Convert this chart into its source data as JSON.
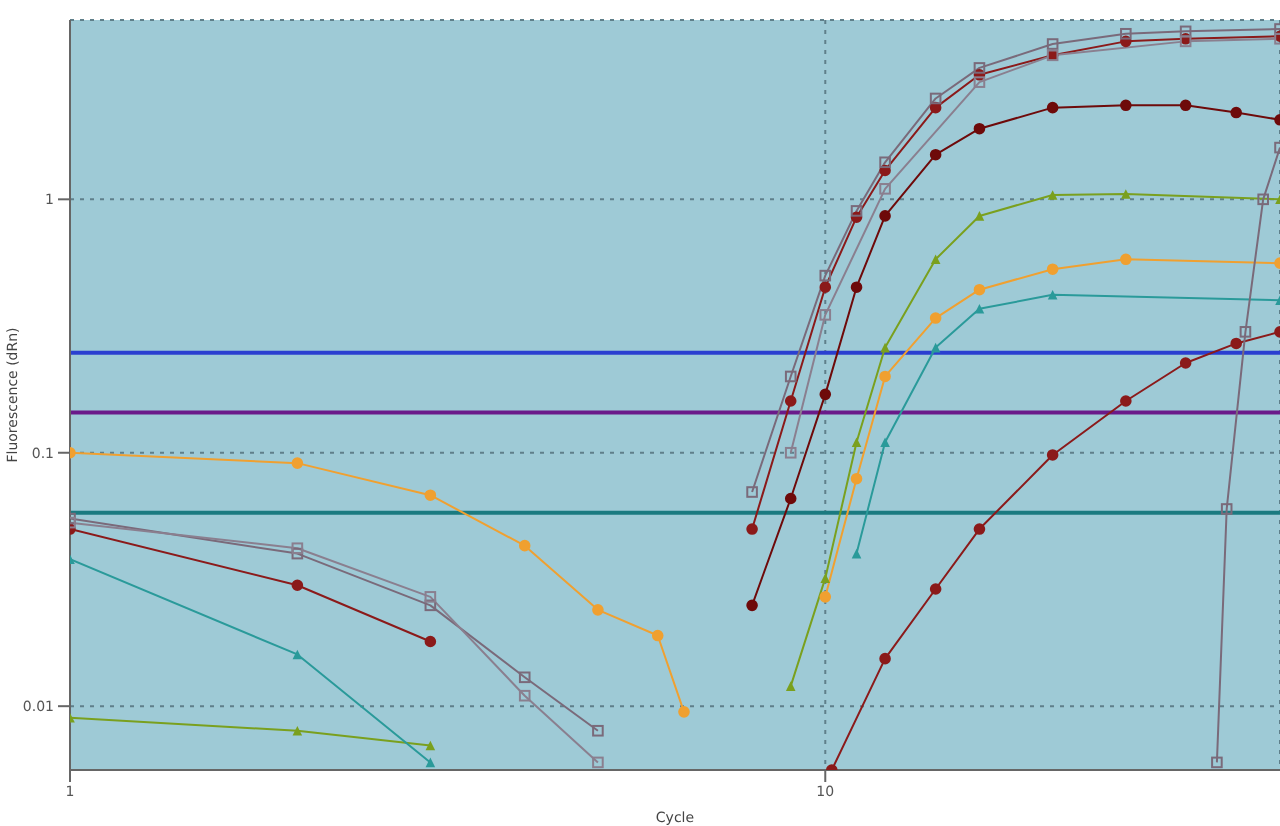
{
  "chart_data": {
    "type": "line",
    "xlabel": "Cycle",
    "ylabel": "Fluorescence (dRn)",
    "log": "xy",
    "xlim": [
      1,
      40
    ],
    "xticks": [
      1,
      10
    ],
    "ylim": [
      0.0056,
      5.1
    ],
    "yticks": [
      0.01,
      0.1,
      1
    ],
    "grid": true,
    "line_style": "solid",
    "ref_lines": [
      {
        "axis": "y",
        "value": 0.248,
        "color": "#2a3fd0"
      },
      {
        "axis": "y",
        "value": 0.144,
        "color": "#6a1a8a"
      },
      {
        "axis": "y",
        "value": 0.058,
        "color": "#1a7a80"
      }
    ],
    "series": [
      {
        "color": "#8b1a1a",
        "marker": "circle",
        "x": [
          1,
          2,
          3,
          4,
          8,
          9,
          10,
          11,
          12,
          14,
          16,
          20,
          25,
          30,
          40
        ],
        "values": [
          0.05,
          0.03,
          0.018,
          null,
          0.05,
          0.16,
          0.45,
          0.85,
          1.3,
          2.3,
          3.1,
          3.7,
          4.2,
          4.3,
          4.4
        ]
      },
      {
        "color": "#7a6a7a",
        "marker": "square",
        "x": [
          1,
          2,
          3,
          4,
          5,
          6,
          8,
          9,
          10,
          11,
          12,
          14,
          16,
          20,
          25,
          30,
          40
        ],
        "values": [
          0.055,
          0.04,
          0.025,
          0.013,
          0.008,
          null,
          0.07,
          0.2,
          0.5,
          0.9,
          1.4,
          2.5,
          3.3,
          4.1,
          4.5,
          4.6,
          4.7
        ]
      },
      {
        "color": "#8a7f8f",
        "marker": "square",
        "x": [
          1,
          2,
          3,
          4,
          5,
          6,
          9,
          10,
          12,
          16,
          20,
          30,
          40
        ],
        "values": [
          0.053,
          0.042,
          0.027,
          0.011,
          0.006,
          null,
          0.1,
          0.35,
          1.1,
          2.9,
          3.7,
          4.2,
          4.3
        ]
      },
      {
        "color": "#6e0a0a",
        "marker": "circle",
        "x": [
          8,
          9,
          10,
          11,
          12,
          14,
          16,
          20,
          25,
          30,
          35,
          40
        ],
        "values": [
          0.025,
          0.066,
          0.17,
          0.45,
          0.86,
          1.5,
          1.9,
          2.3,
          2.35,
          2.35,
          2.2,
          2.06
        ]
      },
      {
        "color": "#7aa01e",
        "marker": "triangle",
        "x": [
          1,
          2,
          3,
          5,
          9,
          10,
          11,
          12,
          14,
          16,
          20,
          25,
          40
        ],
        "values": [
          0.009,
          0.008,
          0.007,
          null,
          0.012,
          0.032,
          0.11,
          0.26,
          0.58,
          0.86,
          1.04,
          1.05,
          1.0
        ]
      },
      {
        "color": "#f0a030",
        "marker": "circle",
        "x": [
          1,
          2,
          3,
          4,
          5,
          6,
          6.5,
          8,
          10,
          11,
          12,
          14,
          16,
          20,
          25,
          40
        ],
        "values": [
          0.1,
          0.091,
          0.068,
          0.043,
          0.024,
          0.019,
          0.0095,
          null,
          0.027,
          0.079,
          0.2,
          0.34,
          0.44,
          0.53,
          0.58,
          0.56
        ]
      },
      {
        "color": "#2a9a9a",
        "marker": "triangle",
        "x": [
          1,
          2,
          3,
          5,
          11,
          12,
          14,
          16,
          20,
          40
        ],
        "values": [
          0.038,
          0.016,
          0.006,
          null,
          0.04,
          0.11,
          0.26,
          0.37,
          0.42,
          0.4
        ]
      },
      {
        "color": "#8b1a1a",
        "marker": "circle",
        "x": [
          10.2,
          12,
          14,
          16,
          20,
          25,
          30,
          35,
          40
        ],
        "values": [
          0.0056,
          0.0154,
          0.029,
          0.05,
          0.098,
          0.16,
          0.226,
          0.27,
          0.3
        ]
      },
      {
        "color": "#7a6a7a",
        "marker": "square",
        "x": [
          33,
          34,
          36,
          38,
          40
        ],
        "values": [
          0.006,
          0.06,
          0.3,
          1.0,
          1.6
        ]
      }
    ]
  }
}
